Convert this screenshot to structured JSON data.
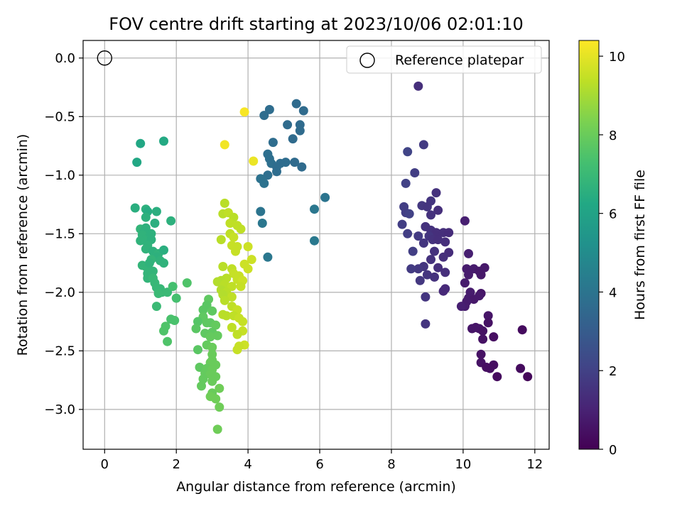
{
  "chart_data": {
    "type": "scatter",
    "title": "FOV centre drift starting at 2023/10/06 02:01:10",
    "xlabel": "Angular distance from reference (arcmin)",
    "ylabel": "Rotation from reference (arcmin)",
    "xlim": [
      -0.6,
      12.4
    ],
    "ylim": [
      -3.34,
      0.15
    ],
    "xticks": [
      0,
      2,
      4,
      6,
      8,
      10,
      12
    ],
    "yticks": [
      0.0,
      -0.5,
      -1.0,
      -1.5,
      -2.0,
      -2.5,
      -3.0
    ],
    "xtick_labels": [
      "0",
      "2",
      "4",
      "6",
      "8",
      "10",
      "12"
    ],
    "ytick_labels": [
      "0.0",
      "−0.5",
      "−1.0",
      "−1.5",
      "−2.0",
      "−2.5",
      "−3.0"
    ],
    "grid": true,
    "legend": {
      "position": "top-right",
      "entries": [
        "Reference platepar"
      ]
    },
    "reference_point": {
      "x": 0.0,
      "y": 0.0,
      "marker": "open-circle"
    },
    "colorbar": {
      "label": "Hours from first FF file",
      "colormap": "viridis",
      "range": [
        0,
        10.4
      ],
      "ticks": [
        0,
        2,
        4,
        6,
        8,
        10
      ],
      "tick_labels": [
        "0",
        "2",
        "4",
        "6",
        "8",
        "10"
      ]
    },
    "points": [
      [
        8.75,
        -0.24,
        1.4
      ],
      [
        8.9,
        -0.74,
        1.8
      ],
      [
        8.45,
        -0.8,
        2.1
      ],
      [
        8.65,
        -0.98,
        1.9
      ],
      [
        8.4,
        -1.07,
        2.0
      ],
      [
        9.25,
        -1.15,
        1.5
      ],
      [
        9.1,
        -1.22,
        1.6
      ],
      [
        8.85,
        -1.26,
        1.7
      ],
      [
        9.0,
        -1.27,
        1.6
      ],
      [
        8.35,
        -1.27,
        1.9
      ],
      [
        8.4,
        -1.32,
        1.9
      ],
      [
        8.5,
        -1.33,
        2.0
      ],
      [
        9.3,
        -1.3,
        1.4
      ],
      [
        9.1,
        -1.34,
        1.5
      ],
      [
        8.3,
        -1.42,
        1.9
      ],
      [
        8.95,
        -1.44,
        1.5
      ],
      [
        9.1,
        -1.47,
        1.5
      ],
      [
        9.25,
        -1.49,
        1.4
      ],
      [
        9.45,
        -1.49,
        1.4
      ],
      [
        9.6,
        -1.49,
        1.3
      ],
      [
        8.45,
        -1.5,
        1.9
      ],
      [
        9.05,
        -1.52,
        1.6
      ],
      [
        8.75,
        -1.52,
        1.8
      ],
      [
        9.15,
        -1.55,
        1.5
      ],
      [
        9.3,
        -1.55,
        1.4
      ],
      [
        9.5,
        -1.57,
        1.4
      ],
      [
        8.9,
        -1.58,
        1.6
      ],
      [
        9.2,
        -1.65,
        1.5
      ],
      [
        9.6,
        -1.66,
        1.3
      ],
      [
        8.6,
        -1.65,
        1.9
      ],
      [
        9.45,
        -1.7,
        1.4
      ],
      [
        9.1,
        -1.72,
        1.5
      ],
      [
        8.9,
        -1.78,
        1.6
      ],
      [
        8.75,
        -1.8,
        1.7
      ],
      [
        8.55,
        -1.8,
        1.8
      ],
      [
        9.3,
        -1.79,
        1.4
      ],
      [
        9.0,
        -1.85,
        1.6
      ],
      [
        9.5,
        -1.83,
        1.4
      ],
      [
        9.2,
        -1.87,
        1.5
      ],
      [
        8.8,
        -1.9,
        1.7
      ],
      [
        10.05,
        -1.39,
        0.9
      ],
      [
        10.15,
        -1.67,
        0.9
      ],
      [
        10.1,
        -1.8,
        0.8
      ],
      [
        10.3,
        -1.8,
        0.8
      ],
      [
        10.45,
        -1.82,
        0.7
      ],
      [
        10.6,
        -1.79,
        0.7
      ],
      [
        10.15,
        -1.85,
        0.8
      ],
      [
        10.5,
        -1.85,
        0.7
      ],
      [
        10.05,
        -1.92,
        0.8
      ],
      [
        9.5,
        -1.97,
        1.2
      ],
      [
        9.45,
        -1.99,
        1.2
      ],
      [
        10.2,
        -2.0,
        0.8
      ],
      [
        10.5,
        -2.01,
        0.6
      ],
      [
        10.45,
        -2.03,
        0.7
      ],
      [
        8.95,
        -2.04,
        1.6
      ],
      [
        10.15,
        -2.05,
        0.8
      ],
      [
        10.3,
        -2.06,
        0.7
      ],
      [
        10.1,
        -2.08,
        0.8
      ],
      [
        10.05,
        -2.12,
        0.8
      ],
      [
        9.95,
        -2.12,
        0.9
      ],
      [
        10.7,
        -2.2,
        0.6
      ],
      [
        10.7,
        -2.26,
        0.5
      ],
      [
        8.95,
        -2.27,
        1.6
      ],
      [
        10.35,
        -2.3,
        0.6
      ],
      [
        10.25,
        -2.31,
        0.6
      ],
      [
        10.45,
        -2.31,
        0.6
      ],
      [
        10.55,
        -2.33,
        0.5
      ],
      [
        11.65,
        -2.32,
        0.3
      ],
      [
        10.85,
        -2.38,
        0.4
      ],
      [
        10.55,
        -2.4,
        0.5
      ],
      [
        10.5,
        -2.53,
        0.5
      ],
      [
        10.5,
        -2.6,
        0.5
      ],
      [
        10.85,
        -2.62,
        0.4
      ],
      [
        10.65,
        -2.64,
        0.4
      ],
      [
        10.75,
        -2.65,
        0.4
      ],
      [
        11.6,
        -2.65,
        0.3
      ],
      [
        10.95,
        -2.72,
        0.3
      ],
      [
        11.8,
        -2.72,
        0.2
      ],
      [
        5.35,
        -0.39,
        3.6
      ],
      [
        4.6,
        -0.44,
        3.7
      ],
      [
        5.55,
        -0.45,
        3.6
      ],
      [
        4.45,
        -0.49,
        3.7
      ],
      [
        5.1,
        -0.57,
        3.6
      ],
      [
        5.45,
        -0.57,
        3.6
      ],
      [
        5.45,
        -0.62,
        3.6
      ],
      [
        5.25,
        -0.69,
        3.6
      ],
      [
        4.7,
        -0.72,
        3.7
      ],
      [
        4.55,
        -0.82,
        3.8
      ],
      [
        4.6,
        -0.86,
        3.8
      ],
      [
        5.05,
        -0.89,
        3.7
      ],
      [
        5.3,
        -0.89,
        3.6
      ],
      [
        4.65,
        -0.9,
        3.8
      ],
      [
        4.9,
        -0.9,
        3.7
      ],
      [
        4.8,
        -0.93,
        3.7
      ],
      [
        5.5,
        -0.93,
        3.6
      ],
      [
        4.8,
        -0.97,
        3.7
      ],
      [
        4.55,
        -1.0,
        3.8
      ],
      [
        4.35,
        -1.03,
        3.9
      ],
      [
        4.45,
        -1.07,
        3.9
      ],
      [
        6.15,
        -1.19,
        4.0
      ],
      [
        5.85,
        -1.29,
        4.1
      ],
      [
        4.35,
        -1.31,
        4.0
      ],
      [
        4.4,
        -1.41,
        4.1
      ],
      [
        5.85,
        -1.56,
        4.2
      ],
      [
        4.55,
        -1.7,
        4.1
      ],
      [
        1.0,
        -0.73,
        6.2
      ],
      [
        1.65,
        -0.71,
        6.3
      ],
      [
        0.9,
        -0.89,
        6.2
      ],
      [
        0.85,
        -1.28,
        6.5
      ],
      [
        1.15,
        -1.29,
        6.6
      ],
      [
        1.2,
        -1.31,
        6.4
      ],
      [
        1.45,
        -1.31,
        6.5
      ],
      [
        1.15,
        -1.36,
        6.6
      ],
      [
        1.85,
        -1.39,
        6.6
      ],
      [
        1.4,
        -1.41,
        6.5
      ],
      [
        1.0,
        -1.46,
        6.8
      ],
      [
        1.15,
        -1.45,
        6.6
      ],
      [
        1.1,
        -1.48,
        6.6
      ],
      [
        1.3,
        -1.5,
        6.6
      ],
      [
        1.05,
        -1.51,
        6.7
      ],
      [
        1.25,
        -1.53,
        6.6
      ],
      [
        1.1,
        -1.55,
        6.7
      ],
      [
        1.0,
        -1.56,
        6.7
      ],
      [
        1.3,
        -1.55,
        6.6
      ],
      [
        1.2,
        -1.6,
        6.7
      ],
      [
        1.15,
        -1.63,
        6.7
      ],
      [
        1.35,
        -1.65,
        6.6
      ],
      [
        1.5,
        -1.67,
        6.7
      ],
      [
        1.65,
        -1.64,
        6.5
      ],
      [
        1.45,
        -1.7,
        6.6
      ],
      [
        1.3,
        -1.72,
        6.8
      ],
      [
        1.55,
        -1.73,
        6.7
      ],
      [
        1.65,
        -1.75,
        6.7
      ],
      [
        1.05,
        -1.77,
        6.8
      ],
      [
        1.15,
        -1.78,
        6.8
      ],
      [
        1.25,
        -1.75,
        6.7
      ],
      [
        1.35,
        -1.82,
        6.8
      ],
      [
        1.2,
        -1.84,
        6.8
      ],
      [
        1.3,
        -1.86,
        6.8
      ],
      [
        1.2,
        -1.88,
        6.8
      ],
      [
        1.35,
        -1.88,
        6.9
      ],
      [
        1.4,
        -1.92,
        6.9
      ],
      [
        1.45,
        -1.96,
        6.9
      ],
      [
        1.55,
        -1.97,
        6.9
      ],
      [
        1.6,
        -2.0,
        6.9
      ],
      [
        1.75,
        -2.0,
        7.0
      ],
      [
        1.5,
        -2.01,
        7.0
      ],
      [
        1.45,
        -2.12,
        7.0
      ],
      [
        1.9,
        -1.95,
        7.3
      ],
      [
        2.0,
        -2.05,
        7.3
      ],
      [
        2.3,
        -1.92,
        7.5
      ],
      [
        1.85,
        -2.23,
        7.4
      ],
      [
        1.95,
        -2.24,
        7.4
      ],
      [
        1.7,
        -2.29,
        7.5
      ],
      [
        1.65,
        -2.33,
        7.5
      ],
      [
        1.75,
        -2.42,
        7.5
      ],
      [
        2.9,
        -2.06,
        7.8
      ],
      [
        2.85,
        -2.11,
        7.7
      ],
      [
        2.75,
        -2.15,
        7.7
      ],
      [
        3.0,
        -2.16,
        7.8
      ],
      [
        2.75,
        -2.21,
        7.8
      ],
      [
        2.6,
        -2.25,
        7.6
      ],
      [
        2.85,
        -2.26,
        7.8
      ],
      [
        2.95,
        -2.26,
        7.8
      ],
      [
        3.1,
        -2.28,
        7.9
      ],
      [
        2.55,
        -2.31,
        7.7
      ],
      [
        2.8,
        -2.35,
        7.8
      ],
      [
        3.0,
        -2.34,
        7.8
      ],
      [
        3.15,
        -2.37,
        7.9
      ],
      [
        2.95,
        -2.38,
        7.9
      ],
      [
        2.85,
        -2.45,
        7.9
      ],
      [
        3.0,
        -2.47,
        8.0
      ],
      [
        2.6,
        -2.49,
        7.7
      ],
      [
        3.0,
        -2.53,
        8.0
      ],
      [
        3.0,
        -2.58,
        8.0
      ],
      [
        2.95,
        -2.6,
        8.0
      ],
      [
        3.1,
        -2.62,
        8.0
      ],
      [
        2.65,
        -2.64,
        7.8
      ],
      [
        2.85,
        -2.65,
        7.9
      ],
      [
        3.0,
        -2.66,
        8.0
      ],
      [
        2.8,
        -2.69,
        7.9
      ],
      [
        2.95,
        -2.7,
        8.0
      ],
      [
        3.1,
        -2.72,
        8.0
      ],
      [
        2.75,
        -2.74,
        7.9
      ],
      [
        3.0,
        -2.76,
        8.0
      ],
      [
        2.7,
        -2.8,
        7.9
      ],
      [
        3.2,
        -2.82,
        8.1
      ],
      [
        3.0,
        -2.86,
        8.0
      ],
      [
        2.95,
        -2.89,
        8.1
      ],
      [
        3.1,
        -2.91,
        8.1
      ],
      [
        3.2,
        -2.98,
        8.1
      ],
      [
        3.15,
        -3.17,
        8.1
      ],
      [
        3.35,
        -1.24,
        9.3
      ],
      [
        3.3,
        -1.33,
        9.3
      ],
      [
        3.45,
        -1.32,
        9.4
      ],
      [
        3.6,
        -1.36,
        9.3
      ],
      [
        3.5,
        -1.41,
        9.4
      ],
      [
        3.7,
        -1.43,
        9.4
      ],
      [
        3.8,
        -1.46,
        9.4
      ],
      [
        3.5,
        -1.5,
        9.4
      ],
      [
        3.6,
        -1.53,
        9.5
      ],
      [
        3.25,
        -1.55,
        9.3
      ],
      [
        3.55,
        -1.6,
        9.5
      ],
      [
        3.7,
        -1.61,
        9.5
      ],
      [
        4.0,
        -1.61,
        9.6
      ],
      [
        3.65,
        -1.65,
        9.5
      ],
      [
        4.1,
        -1.72,
        9.6
      ],
      [
        3.9,
        -1.76,
        9.6
      ],
      [
        3.3,
        -1.78,
        9.3
      ],
      [
        3.55,
        -1.8,
        9.4
      ],
      [
        4.0,
        -1.8,
        9.6
      ],
      [
        3.6,
        -1.84,
        9.5
      ],
      [
        3.75,
        -1.86,
        9.5
      ],
      [
        3.4,
        -1.88,
        9.3
      ],
      [
        3.7,
        -1.89,
        9.5
      ],
      [
        3.25,
        -1.9,
        9.2
      ],
      [
        3.85,
        -1.9,
        9.6
      ],
      [
        3.15,
        -1.91,
        9.2
      ],
      [
        3.35,
        -1.93,
        9.3
      ],
      [
        3.55,
        -1.95,
        9.4
      ],
      [
        3.8,
        -1.95,
        9.5
      ],
      [
        3.25,
        -1.98,
        9.2
      ],
      [
        3.4,
        -2.0,
        9.3
      ],
      [
        3.3,
        -2.02,
        9.2
      ],
      [
        3.55,
        -2.04,
        9.4
      ],
      [
        3.35,
        -2.07,
        9.3
      ],
      [
        3.55,
        -2.12,
        9.4
      ],
      [
        3.7,
        -2.15,
        9.5
      ],
      [
        3.3,
        -2.19,
        9.3
      ],
      [
        3.4,
        -2.2,
        9.3
      ],
      [
        3.6,
        -2.2,
        9.4
      ],
      [
        3.75,
        -2.22,
        9.5
      ],
      [
        3.85,
        -2.25,
        9.5
      ],
      [
        3.55,
        -2.3,
        9.4
      ],
      [
        3.85,
        -2.33,
        9.5
      ],
      [
        3.7,
        -2.36,
        9.4
      ],
      [
        3.9,
        -2.45,
        9.6
      ],
      [
        3.75,
        -2.46,
        9.5
      ],
      [
        3.7,
        -2.49,
        9.5
      ],
      [
        3.9,
        -0.46,
        10.3
      ],
      [
        3.35,
        -0.74,
        10.2
      ],
      [
        4.15,
        -0.88,
        10.1
      ]
    ]
  }
}
